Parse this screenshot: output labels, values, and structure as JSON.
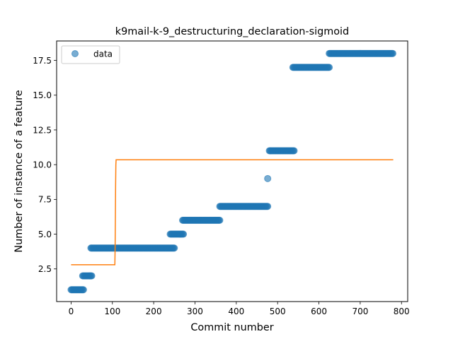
{
  "chart_data": {
    "type": "scatter",
    "title": "k9mail-k-9_destructuring_declaration-sigmoid",
    "xlabel": "Commit number",
    "ylabel": "Number of instance of a feature",
    "xlim": [
      -35,
      815
    ],
    "ylim": [
      0.15,
      18.9
    ],
    "xticks": [
      0,
      100,
      200,
      300,
      400,
      500,
      600,
      700,
      800
    ],
    "xtick_labels": [
      "0",
      "100",
      "200",
      "300",
      "400",
      "500",
      "600",
      "700",
      "800"
    ],
    "yticks": [
      2.5,
      5.0,
      7.5,
      10.0,
      12.5,
      15.0,
      17.5
    ],
    "ytick_labels": [
      "2.5",
      "5.0",
      "7.5",
      "10.0",
      "12.5",
      "15.0",
      "17.5"
    ],
    "grid": false,
    "legend": {
      "placement": "top-left",
      "entries": [
        "data"
      ]
    },
    "colors": {
      "data": "#1f77b4",
      "fit": "#ff7f0e"
    },
    "series": [
      {
        "name": "data",
        "kind": "points",
        "segments": [
          {
            "x_start": 0,
            "x_end": 30,
            "y": 1
          },
          {
            "x_start": 28,
            "x_end": 50,
            "y": 2
          },
          {
            "x_start": 48,
            "x_end": 250,
            "y": 4
          },
          {
            "x_start": 240,
            "x_end": 272,
            "y": 5
          },
          {
            "x_start": 270,
            "x_end": 360,
            "y": 6
          },
          {
            "x_start": 360,
            "x_end": 477,
            "y": 7
          },
          {
            "x_start": 476,
            "x_end": 476,
            "y": 9
          },
          {
            "x_start": 480,
            "x_end": 540,
            "y": 11
          },
          {
            "x_start": 537,
            "x_end": 625,
            "y": 17
          },
          {
            "x_start": 625,
            "x_end": 780,
            "y": 18
          }
        ]
      },
      {
        "kind": "line",
        "x": [
          0,
          106,
          106.6,
          107.2,
          107.8,
          108.4,
          109,
          780
        ],
        "y": [
          2.8,
          2.8,
          4.0,
          6.0,
          8.5,
          10.0,
          10.35,
          10.35
        ]
      }
    ]
  }
}
